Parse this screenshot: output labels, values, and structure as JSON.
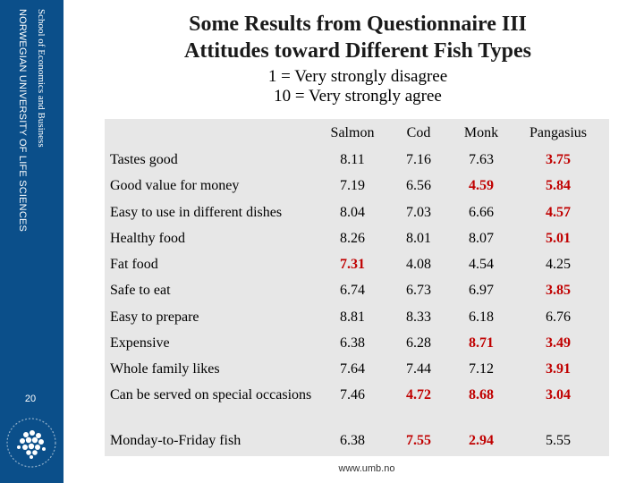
{
  "sidebar": {
    "school": "School of Economics and Business",
    "university": "NORWEGIAN UNIVERSITY OF LIFE SCIENCES",
    "page_number": "20"
  },
  "title_line1": "Some Results from Questionnaire III",
  "title_line2": "Attitudes toward Different Fish Types",
  "scale_line1": "1 = Very strongly disagree",
  "scale_line2": "10 = Very strongly agree",
  "table": {
    "columns": [
      "Salmon",
      "Cod",
      "Monk",
      "Pangasius"
    ],
    "rows": [
      {
        "label": "Tastes good",
        "values": [
          "8.11",
          "7.16",
          "7.63",
          "3.75"
        ],
        "red": [
          false,
          false,
          false,
          true
        ]
      },
      {
        "label": "Good value for money",
        "values": [
          "7.19",
          "6.56",
          "4.59",
          "5.84"
        ],
        "red": [
          false,
          false,
          true,
          true
        ]
      },
      {
        "label": "Easy to use in different dishes",
        "values": [
          "8.04",
          "7.03",
          "6.66",
          "4.57"
        ],
        "red": [
          false,
          false,
          false,
          true
        ]
      },
      {
        "label": "Healthy food",
        "values": [
          "8.26",
          "8.01",
          "8.07",
          "5.01"
        ],
        "red": [
          false,
          false,
          false,
          true
        ]
      },
      {
        "label": "Fat food",
        "values": [
          "7.31",
          "4.08",
          "4.54",
          "4.25"
        ],
        "red": [
          true,
          false,
          false,
          false
        ]
      },
      {
        "label": "Safe to eat",
        "values": [
          "6.74",
          "6.73",
          "6.97",
          "3.85"
        ],
        "red": [
          false,
          false,
          false,
          true
        ]
      },
      {
        "label": "Easy to prepare",
        "values": [
          "8.81",
          "8.33",
          "6.18",
          "6.76"
        ],
        "red": [
          false,
          false,
          false,
          false
        ]
      },
      {
        "label": "Expensive",
        "values": [
          "6.38",
          "6.28",
          "8.71",
          "3.49"
        ],
        "red": [
          false,
          false,
          true,
          true
        ]
      },
      {
        "label": "Whole family likes",
        "values": [
          "7.64",
          "7.44",
          "7.12",
          "3.91"
        ],
        "red": [
          false,
          false,
          false,
          true
        ]
      },
      {
        "label": "Can be served on special occasions",
        "values": [
          "7.46",
          "4.72",
          "8.68",
          "3.04"
        ],
        "red": [
          false,
          true,
          true,
          true
        ]
      },
      {
        "label": "Monday-to-Friday fish",
        "values": [
          "6.38",
          "7.55",
          "2.94",
          "5.55"
        ],
        "red": [
          false,
          true,
          true,
          false
        ]
      }
    ]
  },
  "footer_url": "www.umb.no",
  "colors": {
    "sidebar": "#0b4f8a",
    "highlight": "#c00000",
    "table_bg": "#e7e7e7"
  }
}
